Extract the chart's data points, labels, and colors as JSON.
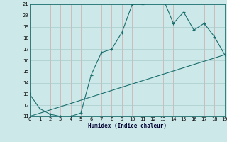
{
  "xlabel": "Humidex (Indice chaleur)",
  "ylabel": "",
  "bg_color": "#cce8e8",
  "grid_color_major": "#aacccc",
  "grid_color_minor": "#ddeeff",
  "line_color": "#1a6e6e",
  "curve_x": [
    0,
    1,
    2,
    3,
    4,
    5,
    6,
    7,
    8,
    9,
    10,
    11,
    12,
    13,
    14,
    15,
    16,
    17,
    18,
    19
  ],
  "curve_y": [
    13.0,
    11.7,
    11.2,
    11.0,
    11.0,
    11.3,
    14.7,
    16.7,
    17.0,
    18.5,
    21.0,
    21.0,
    21.5,
    21.5,
    19.3,
    20.3,
    18.7,
    19.3,
    18.1,
    16.5
  ],
  "line_x": [
    0,
    19
  ],
  "line_y": [
    11.0,
    16.5
  ],
  "ylim_min": 11,
  "ylim_max": 21,
  "xlim_min": 0,
  "xlim_max": 19
}
